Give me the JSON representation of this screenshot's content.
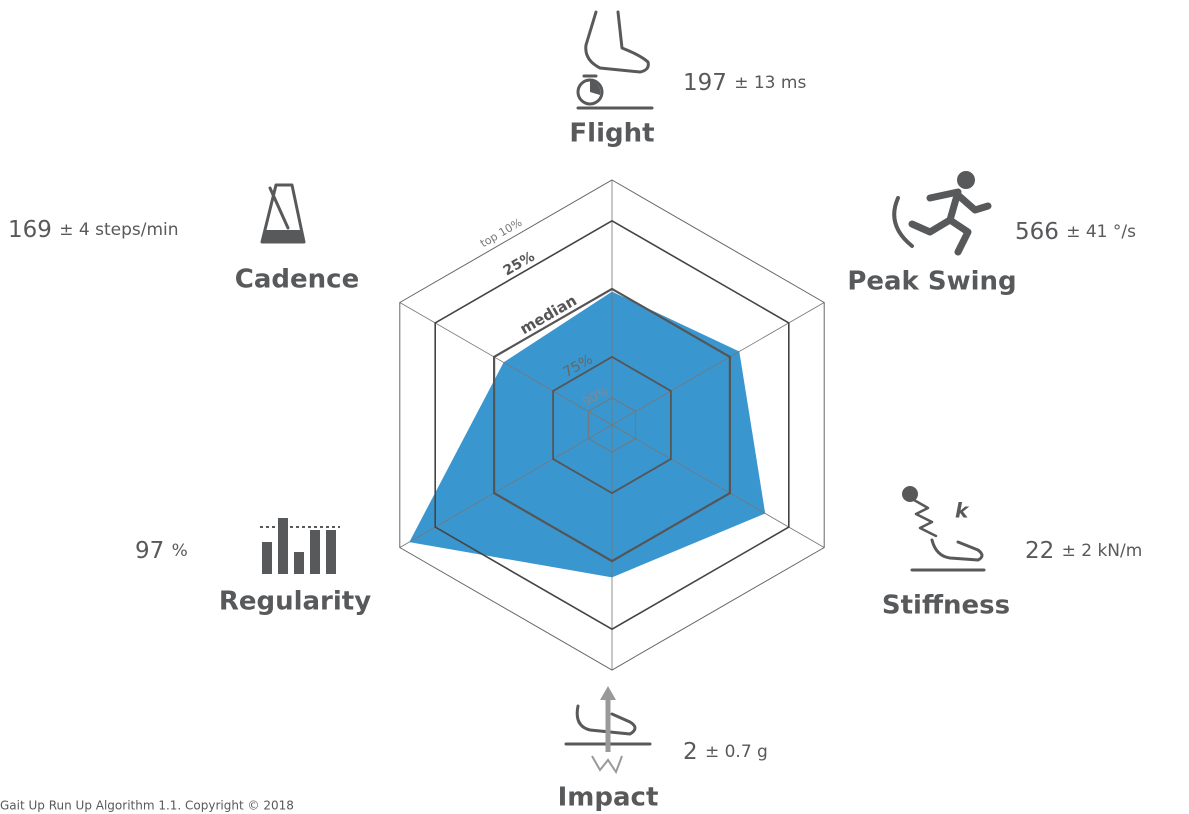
{
  "chart_data": {
    "type": "radar",
    "axes": [
      {
        "name": "Flight",
        "value": 51,
        "reading": "197",
        "spread": "± 13 ms"
      },
      {
        "name": "Peak Swing",
        "value": 46,
        "reading": "566",
        "spread": "± 41 °/s"
      },
      {
        "name": "Stiffness",
        "value": 35,
        "reading": "22",
        "spread": "± 2 kN/m"
      },
      {
        "name": "Impact",
        "value": 44,
        "reading": "2",
        "spread": "± 0.7 g"
      },
      {
        "name": "Regularity",
        "value": 14,
        "reading": "97",
        "spread": "%"
      },
      {
        "name": "Cadence",
        "value": 54,
        "reading": "169",
        "spread": "± 4 steps/min"
      }
    ],
    "rlim": [
      100,
      10
    ],
    "rticks": [
      {
        "value": 90,
        "label": "90%"
      },
      {
        "value": 75,
        "label": "75%"
      },
      {
        "value": 50,
        "label": "median"
      },
      {
        "value": 25,
        "label": "25%"
      },
      {
        "value": 10,
        "label": "top 10%"
      }
    ],
    "color": "#3a96cf",
    "footer": "Gait Up Run Up Algorithm 1.1. Copyright © 2018"
  }
}
